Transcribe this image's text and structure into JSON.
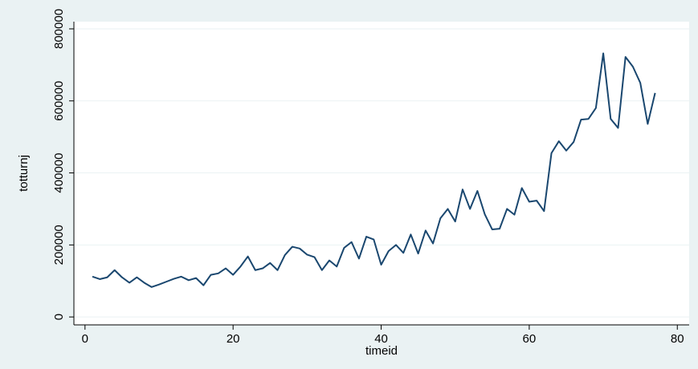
{
  "chart_data": {
    "type": "line",
    "x": [
      1,
      2,
      3,
      4,
      5,
      6,
      7,
      8,
      9,
      10,
      11,
      12,
      13,
      14,
      15,
      16,
      17,
      18,
      19,
      20,
      21,
      22,
      23,
      24,
      25,
      26,
      27,
      28,
      29,
      30,
      31,
      32,
      33,
      34,
      35,
      36,
      37,
      38,
      39,
      40,
      41,
      42,
      43,
      44,
      45,
      46,
      47,
      48,
      49,
      50,
      51,
      52,
      53,
      54,
      55,
      56,
      57,
      58,
      59,
      60,
      61,
      62,
      63,
      64,
      65,
      66,
      67,
      68,
      69,
      70,
      71,
      72,
      73,
      74,
      75,
      76,
      77
    ],
    "series": [
      {
        "name": "totturnj",
        "color": "#1a476f",
        "values": [
          112000,
          105000,
          110000,
          130000,
          110000,
          95000,
          110000,
          95000,
          83000,
          90000,
          98000,
          106000,
          112000,
          102000,
          108000,
          88000,
          117000,
          121000,
          135000,
          117000,
          140000,
          168000,
          130000,
          135000,
          150000,
          130000,
          172000,
          195000,
          190000,
          173000,
          166000,
          130000,
          157000,
          140000,
          192000,
          208000,
          162000,
          223000,
          215000,
          145000,
          183000,
          200000,
          178000,
          229000,
          176000,
          240000,
          204000,
          274000,
          300000,
          265000,
          354000,
          300000,
          350000,
          285000,
          243000,
          245000,
          300000,
          284000,
          358000,
          320000,
          323000,
          294000,
          455000,
          488000,
          462000,
          486000,
          548000,
          550000,
          580000,
          732000,
          550000,
          525000,
          722000,
          695000,
          650000,
          536000,
          622000
        ]
      }
    ],
    "xlabel": "timeid",
    "ylabel": "totturnj",
    "xlim": [
      -1.5,
      81.6
    ],
    "ylim": [
      -22000,
      820000
    ],
    "xticks": [
      0,
      20,
      40,
      60,
      80
    ],
    "yticks": [
      0,
      200000,
      400000,
      600000,
      800000
    ],
    "grid": true
  }
}
